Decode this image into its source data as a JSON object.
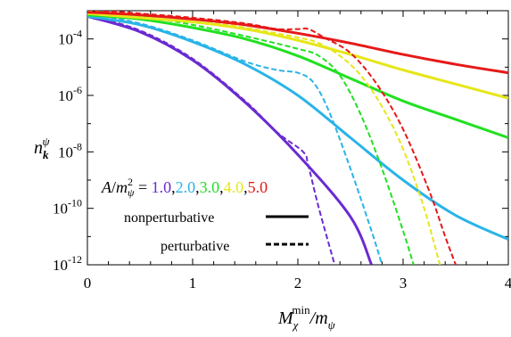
{
  "chart_data": {
    "type": "line",
    "ylabel": {
      "base": "n",
      "sub": "k",
      "sup": "ψ"
    },
    "xlabel": {
      "M": "M",
      "sub": "χ",
      "sup": "min",
      "rest": "/m",
      "rest_sub": "ψ"
    },
    "xlim": [
      0,
      4
    ],
    "ylim_log10": [
      -12,
      -3
    ],
    "y_scale": "log",
    "x_ticks": [
      0,
      1,
      2,
      3,
      4
    ],
    "x_tick_labels": [
      "0",
      "1",
      "2",
      "3",
      "4"
    ],
    "y_ticks_log10": [
      -4,
      -6,
      -8,
      -10,
      -12
    ],
    "y_tick_labels": [
      {
        "base": "10",
        "exp": "-4"
      },
      {
        "base": "10",
        "exp": "-6"
      },
      {
        "base": "10",
        "exp": "-8"
      },
      {
        "base": "10",
        "exp": "-10"
      },
      {
        "base": "10",
        "exp": "-12"
      }
    ],
    "legend": {
      "prefix_A": "A",
      "prefix_slash": "/",
      "prefix_m": "m",
      "prefix_sup": "2",
      "prefix_sub": "ψ",
      "equals": " = ",
      "values": [
        "1.0",
        "2.0",
        "3.0",
        "4.0",
        "5.0"
      ],
      "separator": ",",
      "nonperturbative": "nonperturbative",
      "perturbative": "perturbative"
    },
    "series": [
      {
        "color": "#6a2bd1",
        "value_label": "1.0",
        "style": "solid",
        "points": [
          [
            0,
            -3.2
          ],
          [
            0.5,
            -3.75
          ],
          [
            1.0,
            -4.75
          ],
          [
            1.5,
            -6.25
          ],
          [
            2.0,
            -8.1
          ],
          [
            2.5,
            -10.3
          ],
          [
            2.7,
            -12.0
          ]
        ]
      },
      {
        "color": "#6a2bd1",
        "value_label": "1.0",
        "style": "dashed",
        "points": [
          [
            0,
            -3.15
          ],
          [
            0.5,
            -3.7
          ],
          [
            1.0,
            -4.7
          ],
          [
            1.5,
            -6.2
          ],
          [
            1.8,
            -7.3
          ],
          [
            2.05,
            -8.0
          ],
          [
            2.1,
            -8.5
          ],
          [
            2.2,
            -10.0
          ],
          [
            2.35,
            -12.0
          ]
        ]
      },
      {
        "color": "#2ab4e8",
        "value_label": "2.0",
        "style": "solid",
        "points": [
          [
            0,
            -3.2
          ],
          [
            0.5,
            -3.5
          ],
          [
            1.0,
            -4.1
          ],
          [
            1.5,
            -4.9
          ],
          [
            2.0,
            -6.0
          ],
          [
            2.5,
            -7.5
          ],
          [
            3.0,
            -9.0
          ],
          [
            3.5,
            -10.25
          ],
          [
            4.0,
            -11.1
          ]
        ]
      },
      {
        "color": "#2ab4e8",
        "value_label": "2.0",
        "style": "dashed",
        "points": [
          [
            0,
            -3.1
          ],
          [
            0.5,
            -3.45
          ],
          [
            1.0,
            -4.05
          ],
          [
            1.5,
            -4.8
          ],
          [
            1.8,
            -5.1
          ],
          [
            2.0,
            -5.2
          ],
          [
            2.15,
            -5.55
          ],
          [
            2.3,
            -6.6
          ],
          [
            2.5,
            -8.6
          ],
          [
            2.7,
            -10.8
          ],
          [
            2.8,
            -12.0
          ]
        ]
      },
      {
        "color": "#22e022",
        "value_label": "3.0",
        "style": "solid",
        "points": [
          [
            0,
            -3.15
          ],
          [
            0.5,
            -3.3
          ],
          [
            1.0,
            -3.6
          ],
          [
            1.5,
            -4.0
          ],
          [
            2.0,
            -4.6
          ],
          [
            2.5,
            -5.4
          ],
          [
            3.0,
            -6.2
          ],
          [
            3.5,
            -6.85
          ],
          [
            4.0,
            -7.5
          ]
        ]
      },
      {
        "color": "#22e022",
        "value_label": "3.0",
        "style": "dashed",
        "points": [
          [
            0,
            -3.05
          ],
          [
            0.5,
            -3.2
          ],
          [
            1.0,
            -3.5
          ],
          [
            1.5,
            -3.9
          ],
          [
            2.0,
            -4.35
          ],
          [
            2.2,
            -4.6
          ],
          [
            2.4,
            -5.3
          ],
          [
            2.6,
            -6.7
          ],
          [
            2.8,
            -8.6
          ],
          [
            3.0,
            -10.8
          ],
          [
            3.1,
            -12.0
          ]
        ]
      },
      {
        "color": "#e6e61a",
        "value_label": "4.0",
        "style": "solid",
        "points": [
          [
            0,
            -3.1
          ],
          [
            0.5,
            -3.25
          ],
          [
            1.0,
            -3.4
          ],
          [
            1.5,
            -3.65
          ],
          [
            2.0,
            -4.05
          ],
          [
            2.5,
            -4.55
          ],
          [
            3.0,
            -5.1
          ],
          [
            3.5,
            -5.6
          ],
          [
            4.0,
            -6.1
          ]
        ]
      },
      {
        "color": "#e6e61a",
        "value_label": "4.0",
        "style": "dashed",
        "points": [
          [
            0,
            -3.0
          ],
          [
            0.5,
            -3.15
          ],
          [
            1.0,
            -3.3
          ],
          [
            1.5,
            -3.6
          ],
          [
            2.0,
            -3.95
          ],
          [
            2.2,
            -4.15
          ],
          [
            2.4,
            -4.6
          ],
          [
            2.6,
            -5.3
          ],
          [
            2.8,
            -6.4
          ],
          [
            3.0,
            -7.9
          ],
          [
            3.2,
            -10.0
          ],
          [
            3.35,
            -12.0
          ]
        ]
      },
      {
        "color": "#e61919",
        "value_label": "5.0",
        "style": "solid",
        "points": [
          [
            0,
            -3.05
          ],
          [
            0.5,
            -3.15
          ],
          [
            1.0,
            -3.3
          ],
          [
            1.5,
            -3.5
          ],
          [
            2.0,
            -3.8
          ],
          [
            2.5,
            -4.15
          ],
          [
            3.0,
            -4.55
          ],
          [
            3.5,
            -4.9
          ],
          [
            4.0,
            -5.2
          ]
        ]
      },
      {
        "color": "#e61919",
        "value_label": "5.0",
        "style": "dashed",
        "points": [
          [
            0,
            -2.95
          ],
          [
            0.5,
            -3.1
          ],
          [
            1.0,
            -3.25
          ],
          [
            1.5,
            -3.45
          ],
          [
            1.8,
            -3.65
          ],
          [
            2.0,
            -3.65
          ],
          [
            2.1,
            -3.65
          ],
          [
            2.25,
            -3.95
          ],
          [
            2.5,
            -4.5
          ],
          [
            2.75,
            -5.6
          ],
          [
            3.0,
            -7.2
          ],
          [
            3.25,
            -9.4
          ],
          [
            3.4,
            -11.0
          ],
          [
            3.5,
            -12.0
          ]
        ]
      }
    ]
  }
}
